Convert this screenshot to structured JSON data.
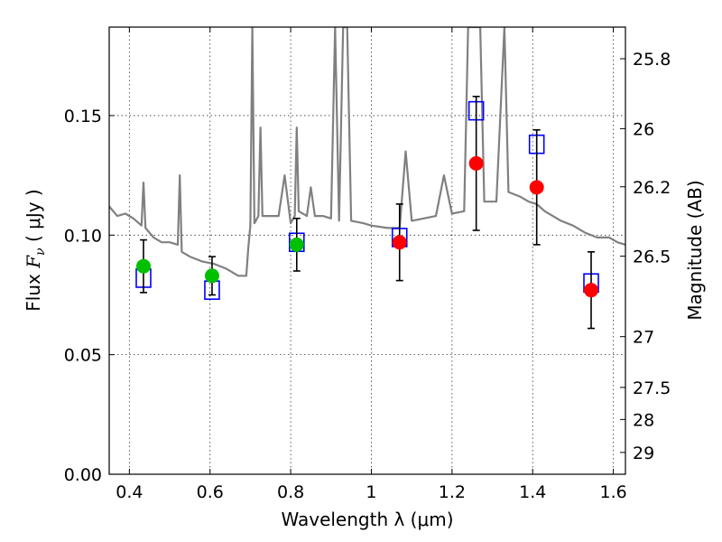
{
  "chart_data": {
    "type": "scatter",
    "title": "",
    "xlabel": "Wavelength  λ (μm)",
    "ylabel": "Flux  F_ν  ( μJy )",
    "ylabel_parts": {
      "pre": "Flux  ",
      "sym": "F",
      "sub": "ν",
      "post": "  ( μJy )"
    },
    "y2label": "Magnitude (AB)",
    "xlim": [
      0.35,
      1.63
    ],
    "ylim": [
      0.0,
      0.187
    ],
    "grid": true,
    "xticks": [
      {
        "value": 0.4,
        "label": "0.4"
      },
      {
        "value": 0.6,
        "label": "0.6"
      },
      {
        "value": 0.8,
        "label": "0.8"
      },
      {
        "value": 1.0,
        "label": "1"
      },
      {
        "value": 1.2,
        "label": "1.2"
      },
      {
        "value": 1.4,
        "label": "1.4"
      },
      {
        "value": 1.6,
        "label": "1.6"
      }
    ],
    "yticks": [
      {
        "value": 0.0,
        "label": "0.00"
      },
      {
        "value": 0.05,
        "label": "0.05"
      },
      {
        "value": 0.1,
        "label": "0.10"
      },
      {
        "value": 0.15,
        "label": "0.15"
      }
    ],
    "mag_ticks": [
      {
        "value": 25.8,
        "label": "25.8"
      },
      {
        "value": 26.0,
        "label": "26"
      },
      {
        "value": 26.2,
        "label": "26.2"
      },
      {
        "value": 26.5,
        "label": "26.5"
      },
      {
        "value": 27.0,
        "label": "27"
      },
      {
        "value": 27.5,
        "label": "27.5"
      },
      {
        "value": 28.0,
        "label": "28"
      },
      {
        "value": 29.0,
        "label": "29"
      }
    ],
    "colors": {
      "template": "#808080",
      "model_box": "#0000ff",
      "optical": "#00c000",
      "nir": "#ff0000",
      "errorbar": "#000000"
    },
    "series": [
      {
        "kind": "template",
        "points": [
          [
            0.35,
            0.112
          ],
          [
            0.37,
            0.108
          ],
          [
            0.39,
            0.109
          ],
          [
            0.41,
            0.107
          ],
          [
            0.43,
            0.104
          ],
          [
            0.435,
            0.122
          ],
          [
            0.44,
            0.103
          ],
          [
            0.46,
            0.099
          ],
          [
            0.48,
            0.097
          ],
          [
            0.5,
            0.097
          ],
          [
            0.52,
            0.096
          ],
          [
            0.525,
            0.125
          ],
          [
            0.53,
            0.093
          ],
          [
            0.55,
            0.091
          ],
          [
            0.58,
            0.089
          ],
          [
            0.61,
            0.088
          ],
          [
            0.64,
            0.086
          ],
          [
            0.67,
            0.083
          ],
          [
            0.69,
            0.083
          ],
          [
            0.695,
            0.095
          ],
          [
            0.7,
            0.104
          ],
          [
            0.705,
            0.187
          ],
          [
            0.71,
            0.105
          ],
          [
            0.72,
            0.108
          ],
          [
            0.725,
            0.145
          ],
          [
            0.73,
            0.108
          ],
          [
            0.75,
            0.108
          ],
          [
            0.77,
            0.108
          ],
          [
            0.785,
            0.125
          ],
          [
            0.8,
            0.105
          ],
          [
            0.81,
            0.108
          ],
          [
            0.815,
            0.145
          ],
          [
            0.82,
            0.11
          ],
          [
            0.84,
            0.108
          ],
          [
            0.85,
            0.12
          ],
          [
            0.86,
            0.108
          ],
          [
            0.88,
            0.108
          ],
          [
            0.9,
            0.107
          ],
          [
            0.91,
            0.187
          ],
          [
            0.92,
            0.106
          ],
          [
            0.93,
            0.187
          ],
          [
            0.94,
            0.187
          ],
          [
            0.95,
            0.106
          ],
          [
            0.98,
            0.105
          ],
          [
            1.0,
            0.104
          ],
          [
            1.04,
            0.103
          ],
          [
            1.07,
            0.103
          ],
          [
            1.085,
            0.135
          ],
          [
            1.1,
            0.106
          ],
          [
            1.13,
            0.107
          ],
          [
            1.16,
            0.108
          ],
          [
            1.18,
            0.125
          ],
          [
            1.2,
            0.109
          ],
          [
            1.23,
            0.11
          ],
          [
            1.24,
            0.187
          ],
          [
            1.27,
            0.187
          ],
          [
            1.28,
            0.114
          ],
          [
            1.31,
            0.114
          ],
          [
            1.33,
            0.187
          ],
          [
            1.34,
            0.118
          ],
          [
            1.37,
            0.116
          ],
          [
            1.39,
            0.114
          ],
          [
            1.41,
            0.113
          ],
          [
            1.43,
            0.11
          ],
          [
            1.47,
            0.106
          ],
          [
            1.5,
            0.104
          ],
          [
            1.53,
            0.101
          ],
          [
            1.56,
            0.099
          ],
          [
            1.59,
            0.099
          ],
          [
            1.61,
            0.097
          ],
          [
            1.63,
            0.096
          ]
        ]
      },
      {
        "kind": "model_box",
        "points": [
          [
            0.435,
            0.082
          ],
          [
            0.605,
            0.077
          ],
          [
            0.815,
            0.097
          ],
          [
            1.07,
            0.099
          ],
          [
            1.26,
            0.152
          ],
          [
            1.41,
            0.138
          ],
          [
            1.545,
            0.08
          ]
        ]
      },
      {
        "kind": "optical",
        "points": [
          {
            "x": 0.435,
            "y": 0.087,
            "err": 0.011
          },
          {
            "x": 0.605,
            "y": 0.083,
            "err": 0.008
          },
          {
            "x": 0.815,
            "y": 0.096,
            "err": 0.011
          }
        ]
      },
      {
        "kind": "nir",
        "points": [
          {
            "x": 1.07,
            "y": 0.097,
            "err": 0.016
          },
          {
            "x": 1.26,
            "y": 0.13,
            "err": 0.028
          },
          {
            "x": 1.41,
            "y": 0.12,
            "err": 0.024
          },
          {
            "x": 1.545,
            "y": 0.077,
            "err": 0.016
          }
        ]
      }
    ]
  }
}
